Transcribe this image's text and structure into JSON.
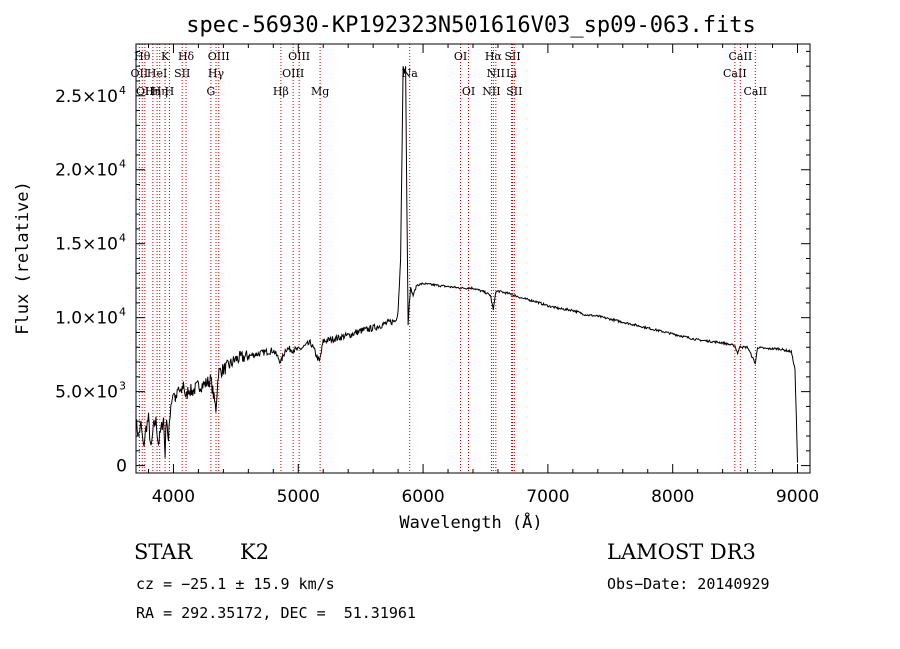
{
  "chart_data": {
    "type": "line",
    "title": "spec-56930-KP192323N501616V03_sp09-063.fits",
    "xlabel": "Wavelength (Å)",
    "ylabel": "Flux (relative)",
    "xlim": [
      3700,
      9100
    ],
    "ylim": [
      -500,
      28500
    ],
    "x_ticks": [
      {
        "value": 4000,
        "label": "4000"
      },
      {
        "value": 5000,
        "label": "5000"
      },
      {
        "value": 6000,
        "label": "6000"
      },
      {
        "value": 7000,
        "label": "7000"
      },
      {
        "value": 8000,
        "label": "8000"
      },
      {
        "value": 9000,
        "label": "9000"
      }
    ],
    "y_ticks": [
      {
        "value": 0,
        "mant": "0",
        "exp": ""
      },
      {
        "value": 5000,
        "mant": "5.0×10",
        "exp": "3"
      },
      {
        "value": 10000,
        "mant": "1.0×10",
        "exp": "4"
      },
      {
        "value": 15000,
        "mant": "1.5×10",
        "exp": "4"
      },
      {
        "value": 20000,
        "mant": "2.0×10",
        "exp": "4"
      },
      {
        "value": 25000,
        "mant": "2.5×10",
        "exp": "4"
      }
    ],
    "series": [
      {
        "name": "flux",
        "x": [
          3700,
          3720,
          3740,
          3760,
          3780,
          3800,
          3820,
          3840,
          3860,
          3880,
          3900,
          3920,
          3933,
          3945,
          3960,
          3968,
          3980,
          4000,
          4020,
          4040,
          4060,
          4080,
          4101,
          4120,
          4150,
          4200,
          4250,
          4300,
          4340,
          4360,
          4400,
          4450,
          4500,
          4550,
          4600,
          4700,
          4800,
          4861,
          4900,
          5000,
          5100,
          5170,
          5200,
          5300,
          5400,
          5500,
          5600,
          5700,
          5780,
          5800,
          5820,
          5840,
          5850,
          5860,
          5870,
          5880,
          5890,
          5900,
          5920,
          5950,
          6000,
          6100,
          6200,
          6300,
          6400,
          6500,
          6540,
          6563,
          6580,
          6600,
          6700,
          6800,
          6900,
          7000,
          7100,
          7200,
          7300,
          7400,
          7500,
          7600,
          7700,
          7800,
          7900,
          8000,
          8100,
          8200,
          8300,
          8400,
          8498,
          8520,
          8542,
          8560,
          8600,
          8662,
          8680,
          8750,
          8850,
          8950,
          8980,
          9000
        ],
        "y": [
          3000,
          2000,
          2800,
          1200,
          2500,
          3200,
          1000,
          2600,
          3000,
          1500,
          2400,
          3200,
          800,
          3500,
          1500,
          3000,
          4200,
          5000,
          4400,
          5200,
          4800,
          5600,
          4500,
          5200,
          5000,
          5400,
          5500,
          5800,
          3800,
          6300,
          6500,
          6800,
          7200,
          7300,
          7400,
          7600,
          7800,
          7000,
          7900,
          7800,
          8300,
          7000,
          8400,
          8600,
          8800,
          9100,
          9300,
          9600,
          9800,
          10500,
          14000,
          27000,
          26500,
          27000,
          18000,
          9500,
          11000,
          12000,
          11500,
          12200,
          12300,
          12200,
          12100,
          12000,
          12000,
          11700,
          11500,
          10500,
          11700,
          11800,
          11600,
          11300,
          11100,
          10800,
          10600,
          10500,
          10200,
          10100,
          9900,
          9700,
          9500,
          9300,
          9100,
          8900,
          8700,
          8500,
          8400,
          8300,
          8100,
          7600,
          8100,
          8000,
          8000,
          6900,
          8000,
          7900,
          7900,
          7700,
          6500,
          200
        ]
      }
    ],
    "spectral_lines": [
      {
        "wl": 3727,
        "label": "OII",
        "row": 1
      },
      {
        "wl": 3750,
        "label": "Hθ",
        "row": 0
      },
      {
        "wl": 3771,
        "label": "OII",
        "row": 2
      },
      {
        "wl": 3835,
        "label": "Hη",
        "row": 2
      },
      {
        "wl": 3869,
        "label": "HeI",
        "row": 1
      },
      {
        "wl": 3890,
        "label": "Hη",
        "row": 2
      },
      {
        "wl": 3933,
        "label": "K",
        "row": 0
      },
      {
        "wl": 3968,
        "label": "H",
        "row": 2
      },
      {
        "wl": 4070,
        "label": "SII",
        "row": 1
      },
      {
        "wl": 4101,
        "label": "Hδ",
        "row": 0
      },
      {
        "wl": 4300,
        "label": "G",
        "row": 2
      },
      {
        "wl": 4341,
        "label": "Hγ",
        "row": 1
      },
      {
        "wl": 4363,
        "label": "OIII",
        "row": 0
      },
      {
        "wl": 4861,
        "label": "Hβ",
        "row": 2
      },
      {
        "wl": 4959,
        "label": "OIII",
        "row": 1
      },
      {
        "wl": 5007,
        "label": "OIII",
        "row": 0
      },
      {
        "wl": 5175,
        "label": "Mg",
        "row": 2
      },
      {
        "wl": 5893,
        "label": "Na",
        "row": 1
      },
      {
        "wl": 6300,
        "label": "OI",
        "row": 0
      },
      {
        "wl": 6364,
        "label": "OI",
        "row": 2
      },
      {
        "wl": 6548,
        "label": "NII",
        "row": 2
      },
      {
        "wl": 6563,
        "label": "Hα",
        "row": 0
      },
      {
        "wl": 6583,
        "label": "NII",
        "row": 1
      },
      {
        "wl": 6708,
        "label": "Li",
        "row": 1
      },
      {
        "wl": 6717,
        "label": "SII",
        "row": 0
      },
      {
        "wl": 6731,
        "label": "SII",
        "row": 2
      },
      {
        "wl": 8498,
        "label": "CaII",
        "row": 1
      },
      {
        "wl": 8542,
        "label": "CaII",
        "row": 0
      },
      {
        "wl": 8662,
        "label": "CaII",
        "row": 2
      }
    ]
  },
  "info": {
    "obj_class": "STAR",
    "subclass": "K2",
    "survey": "LAMOST DR3",
    "cz": "cz = −25.1 ± 15.9 km/s",
    "obs_date": "Obs−Date: 20140929",
    "coords": "RA = 292.35172, DEC =  51.31961"
  }
}
